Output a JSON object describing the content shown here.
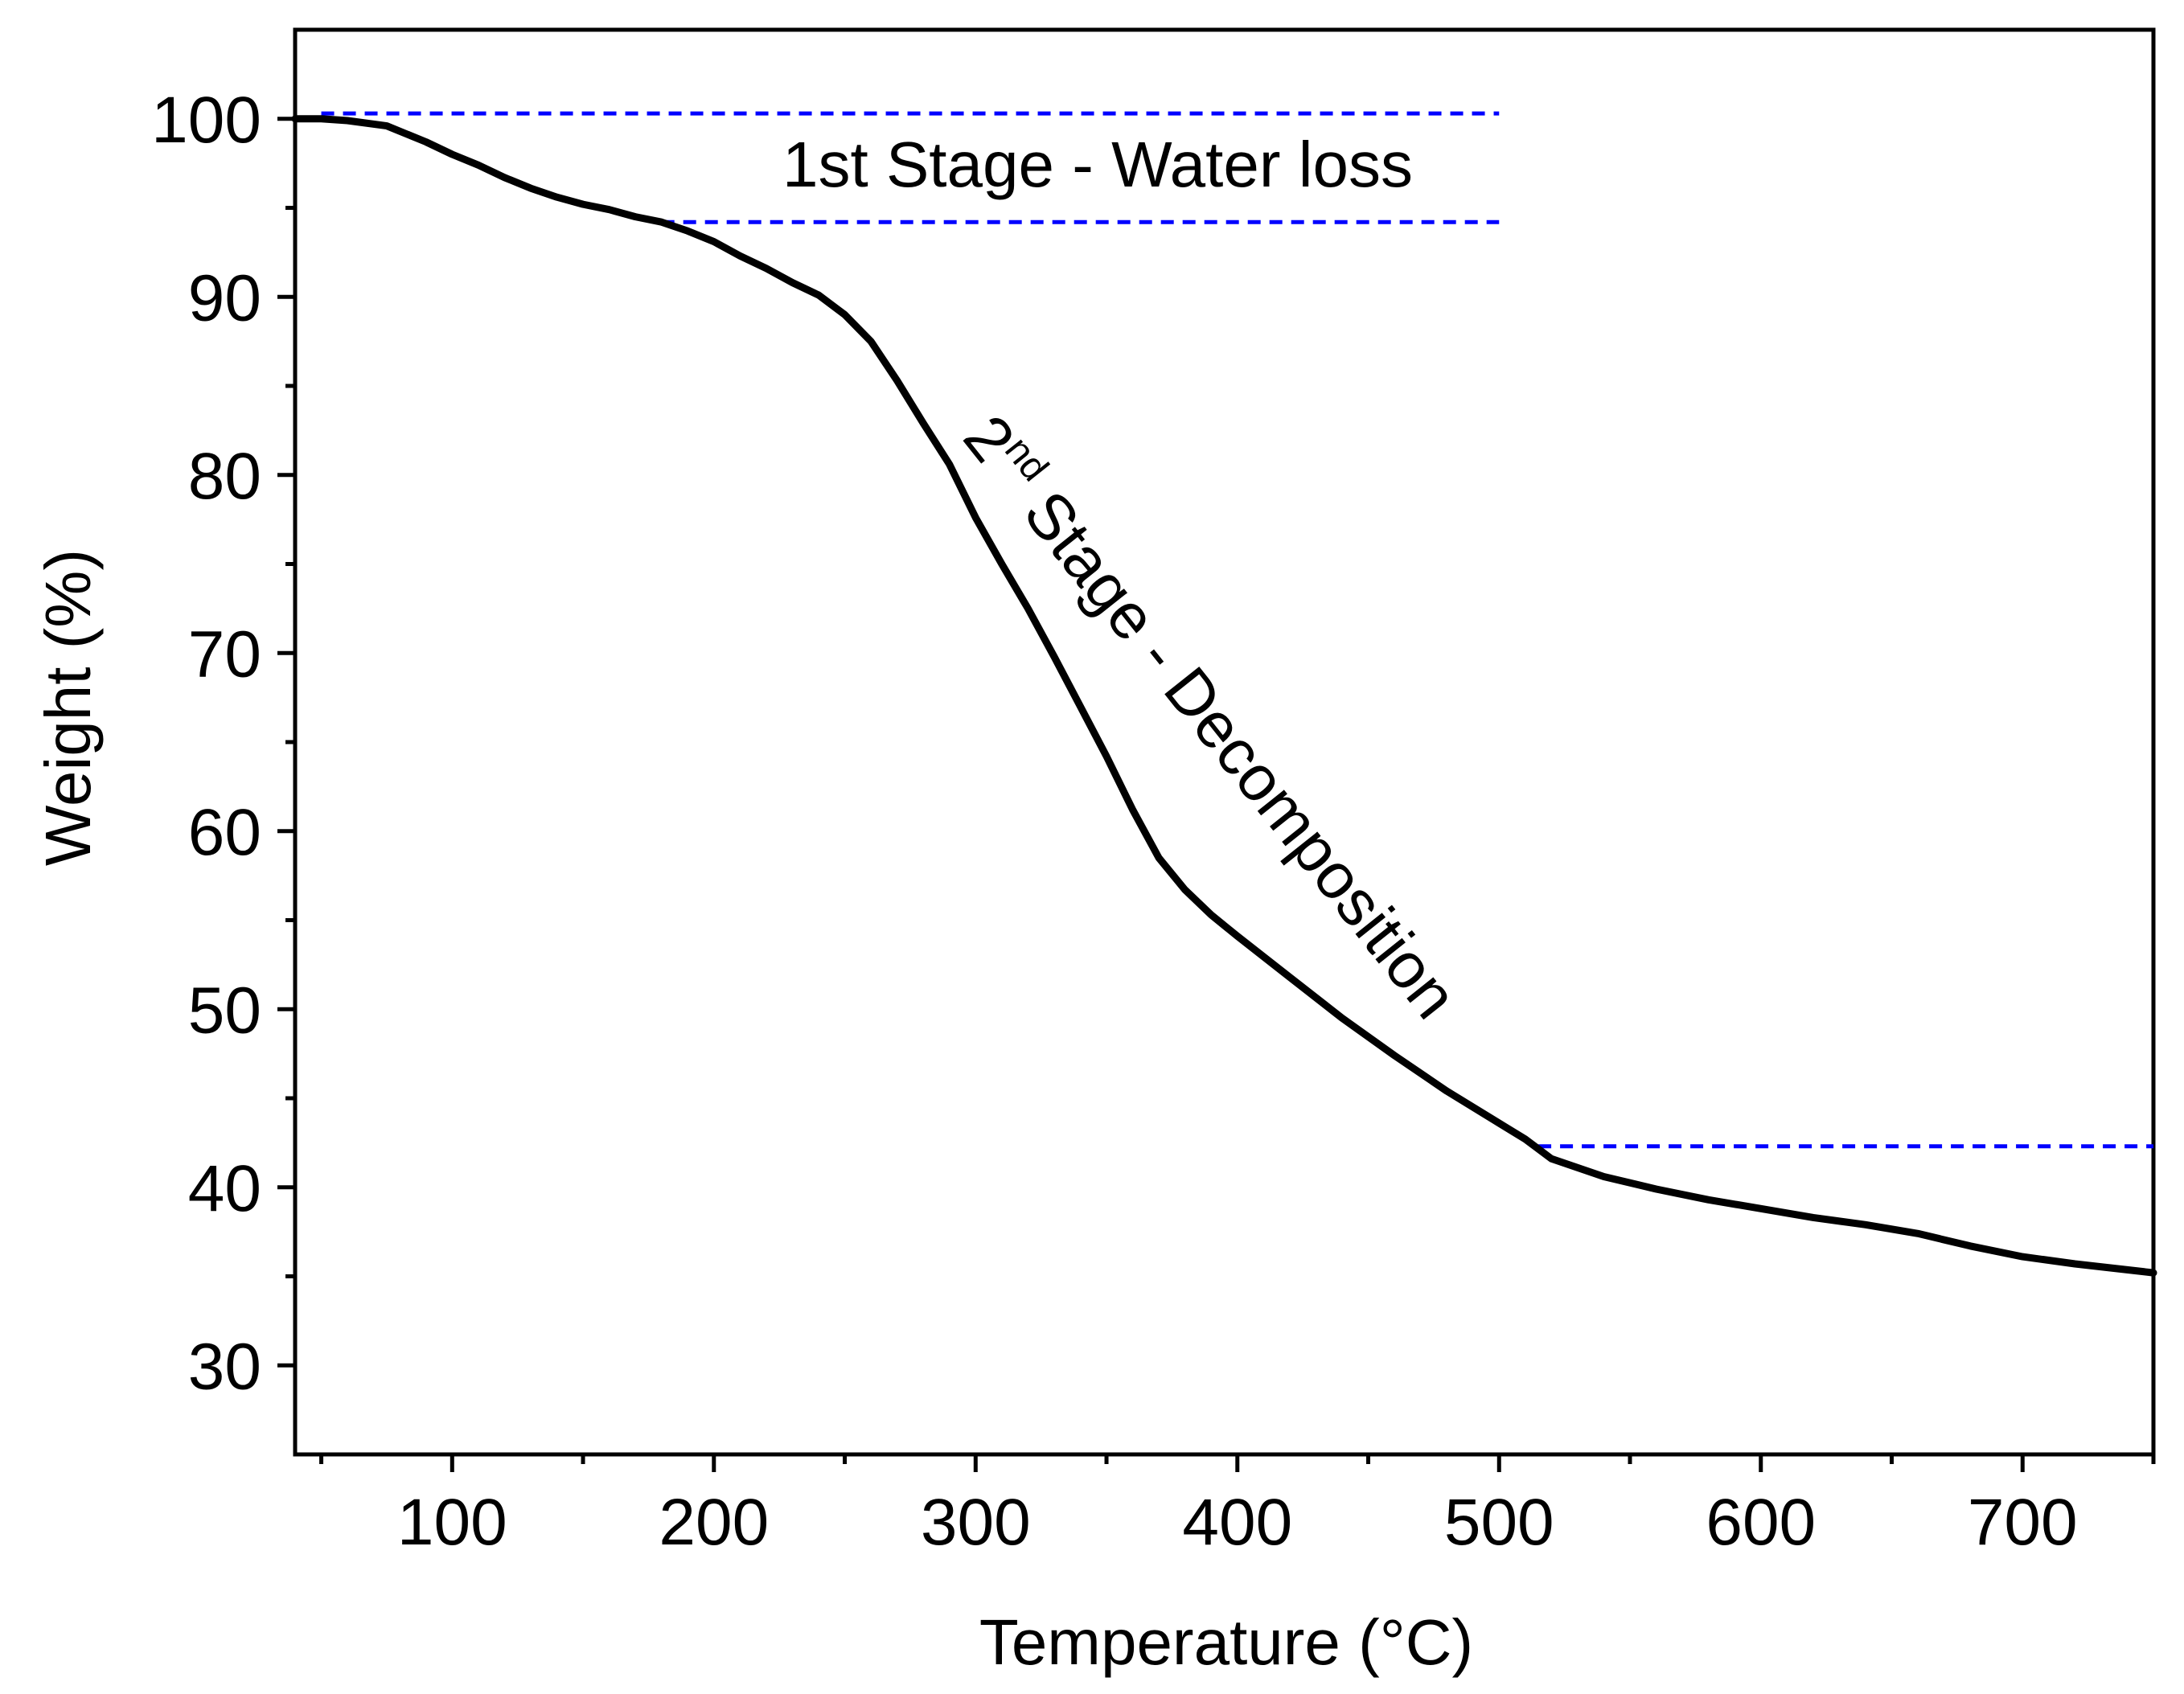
{
  "chart_data": {
    "type": "line",
    "title": "",
    "xlabel": "Temperature (°C)",
    "ylabel": "Weight (%)",
    "xlim": [
      40,
      750
    ],
    "ylim": [
      25,
      105
    ],
    "x_ticks": [
      100,
      200,
      300,
      400,
      500,
      600,
      700
    ],
    "y_ticks": [
      30,
      40,
      50,
      60,
      70,
      80,
      90,
      100
    ],
    "x_minor_ticks": [
      50,
      150,
      250,
      350,
      450,
      550,
      650,
      750
    ],
    "y_minor_ticks": [
      35,
      45,
      55,
      65,
      75,
      85,
      95
    ],
    "grid": false,
    "series": [
      {
        "color": "#000000",
        "x": [
          40,
          50,
          60,
          75,
          90,
          100,
          110,
          120,
          130,
          140,
          150,
          160,
          170,
          180,
          190,
          200,
          210,
          220,
          230,
          240,
          250,
          260,
          270,
          280,
          290,
          300,
          310,
          320,
          330,
          340,
          350,
          360,
          370,
          380,
          390,
          400,
          420,
          440,
          460,
          480,
          500,
          510,
          520,
          540,
          560,
          580,
          600,
          620,
          640,
          660,
          680,
          700,
          720,
          750
        ],
        "y": [
          100.0,
          100.0,
          99.9,
          99.6,
          98.7,
          98.0,
          97.4,
          96.7,
          96.1,
          95.6,
          95.2,
          94.9,
          94.5,
          94.2,
          93.7,
          93.1,
          92.3,
          91.6,
          90.8,
          90.1,
          89.0,
          87.5,
          85.3,
          82.9,
          80.6,
          77.6,
          75.0,
          72.5,
          69.8,
          67.0,
          64.2,
          61.2,
          58.5,
          56.7,
          55.3,
          54.1,
          51.8,
          49.5,
          47.4,
          45.4,
          43.6,
          42.7,
          41.6,
          40.6,
          39.9,
          39.3,
          38.8,
          38.3,
          37.9,
          37.4,
          36.7,
          36.1,
          35.7,
          35.2
        ]
      }
    ],
    "reference_lines": [
      {
        "color": "#0000ff",
        "style": "dashed",
        "y": 100.3,
        "x_from": 50,
        "x_to": 500
      },
      {
        "color": "#0000ff",
        "style": "dashed",
        "y": 94.2,
        "x_from": 180,
        "x_to": 500
      },
      {
        "color": "#0000ff",
        "style": "dashed",
        "y": 42.3,
        "x_from": 515,
        "x_to": 750
      }
    ],
    "annotations": {
      "stage1": "1st Stage - Water loss",
      "stage2_base": "2",
      "stage2_sup": "nd",
      "stage2_rest": " Stage - Decomposition"
    }
  }
}
